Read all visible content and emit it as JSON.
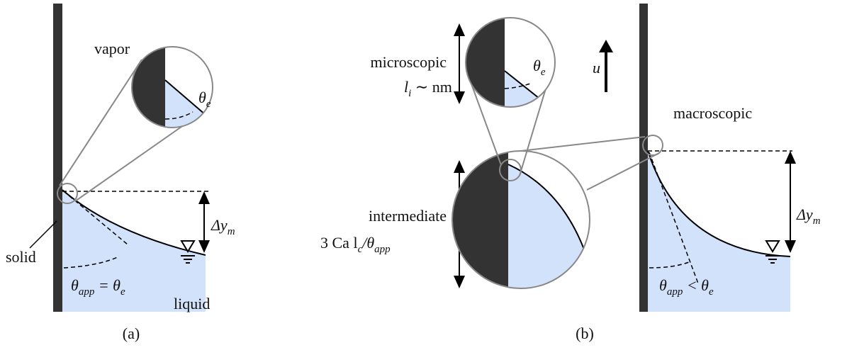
{
  "panel_a": {
    "vapor": "vapor",
    "solid": "solid",
    "liquid": "liquid",
    "zoom_angle": {
      "symbol": "θ",
      "sub": "e"
    },
    "angle_relation": {
      "lhs": "θ",
      "lhs_sub": "app",
      "op": " = θ",
      "rhs_sub": "e"
    },
    "height": {
      "symbol": "Δy",
      "sub": "m"
    },
    "caption": "(a)"
  },
  "panel_b": {
    "micro": {
      "label": "microscopic",
      "scale": "l",
      "scale_sub": "i",
      "scale_rest": " ∼ nm"
    },
    "micro_angle": {
      "symbol": "θ",
      "sub": "e"
    },
    "velocity": "u",
    "macro": "macroscopic",
    "intermediate": {
      "label": "intermediate",
      "scale": "3 Ca l",
      "scale_sub": "c",
      "scale_rest": "/θ",
      "scale_sub2": "app"
    },
    "height": {
      "symbol": "Δy",
      "sub": "m"
    },
    "angle_relation": {
      "lhs": "θ",
      "lhs_sub": "app",
      "op": " < θ",
      "rhs_sub": "e"
    },
    "caption": "(b)"
  }
}
